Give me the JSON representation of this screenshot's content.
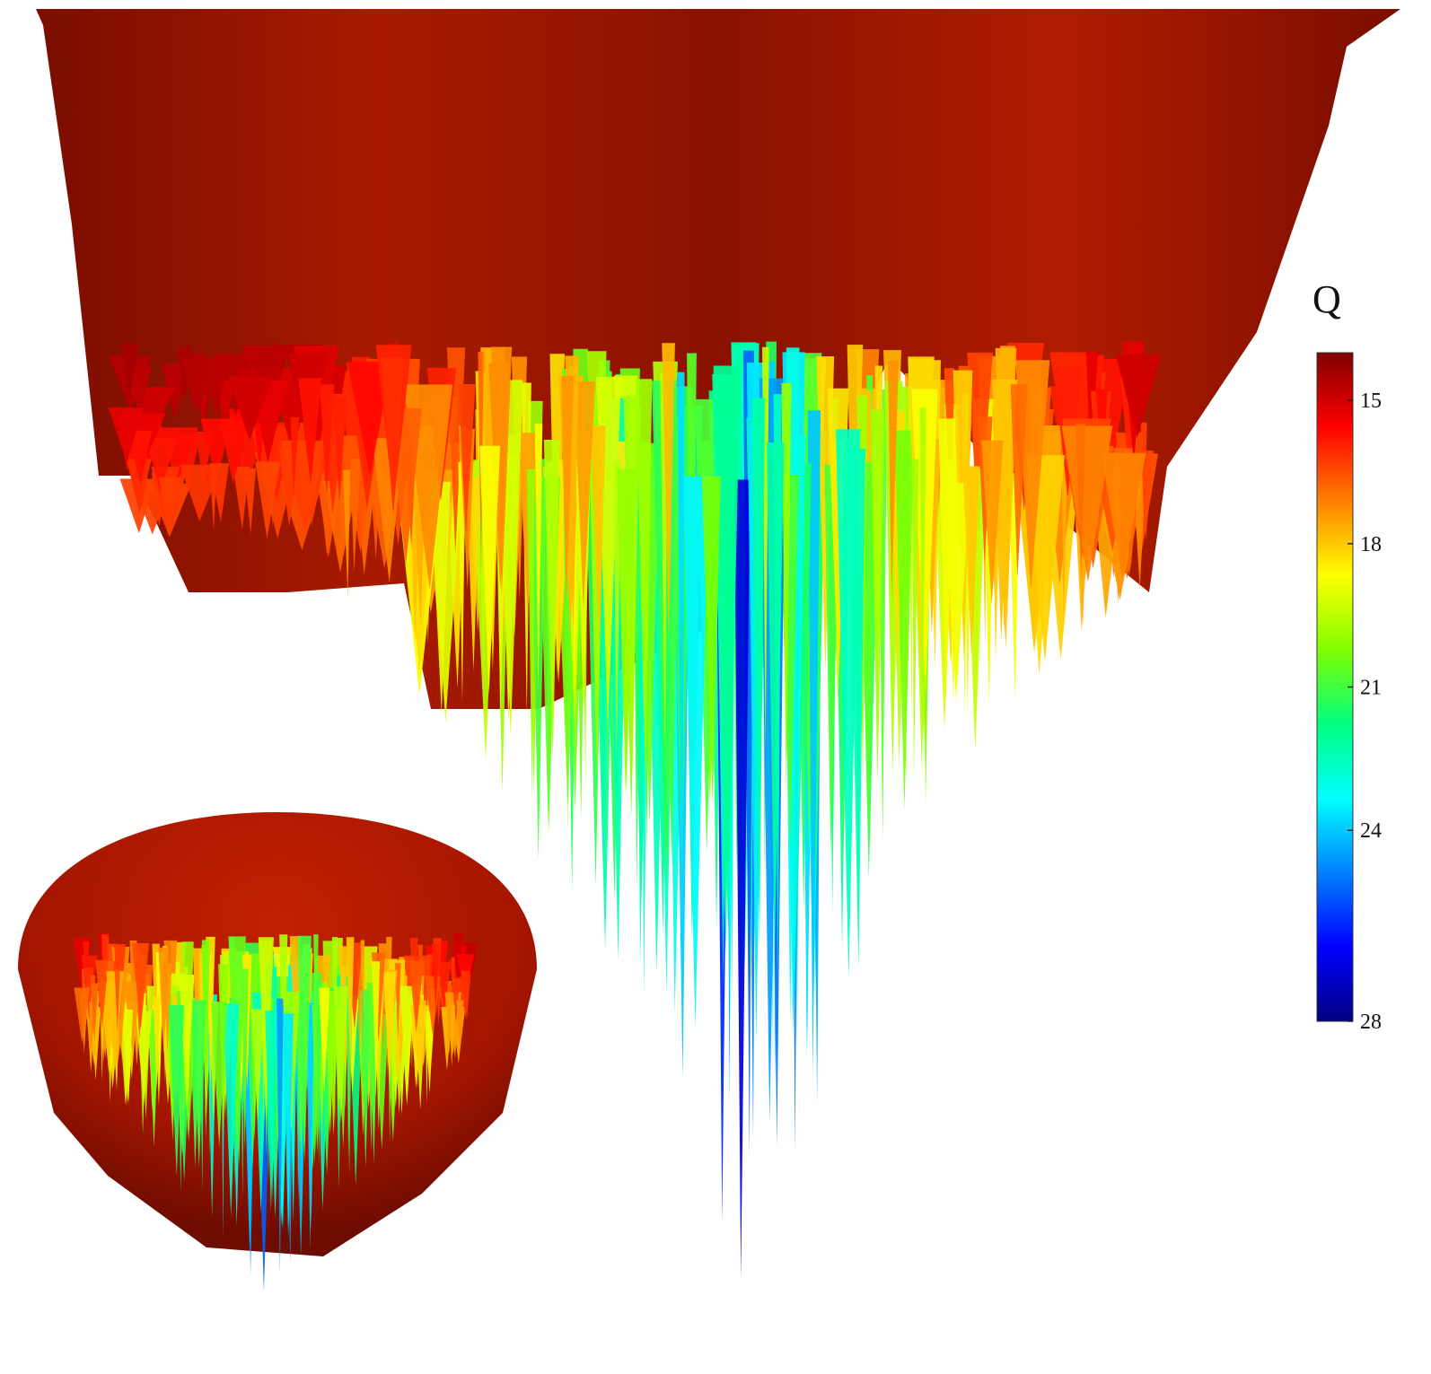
{
  "chart_data": {
    "type": "heatmap",
    "subtype": "3d-surface",
    "views": [
      "main-side-view",
      "inset-perspective-view"
    ],
    "colorbar": {
      "title": "Q",
      "ticks": [
        15,
        18,
        21,
        24,
        28
      ],
      "range": [
        14,
        28
      ],
      "colormap": "jet-reversed",
      "stops": [
        "#800000",
        "#ff0000",
        "#ff8000",
        "#ffff00",
        "#80ff00",
        "#00ff80",
        "#00ffff",
        "#0080ff",
        "#0000ff",
        "#000080"
      ]
    },
    "colors": {
      "surface_dark": "#5a0a00",
      "surface_red": "#a21400",
      "spike_yellow": "#c8b400",
      "spike_green": "#3fbf2a",
      "spike_blue": "#2a3fbf"
    }
  }
}
